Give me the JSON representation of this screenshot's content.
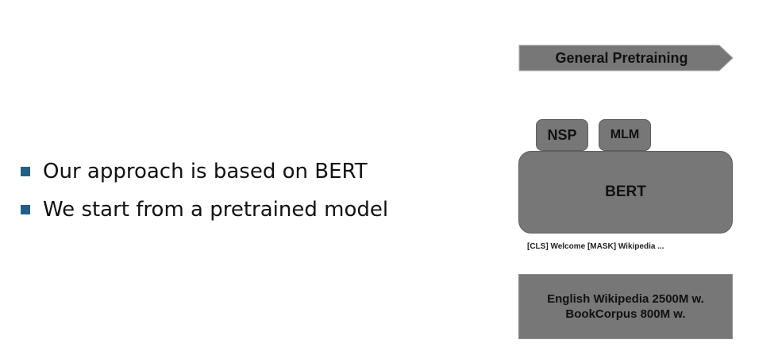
{
  "bullets": [
    "Our approach is based on BERT",
    "We start from a pretrained model"
  ],
  "diagram": {
    "banner_label": "General Pretraining",
    "heads": {
      "nsp": "NSP",
      "mlm": "MLM"
    },
    "model_label": "BERT",
    "input_tokens": "[CLS] Welcome [MASK] Wikipedia ...",
    "corpus": {
      "line1": "English Wikipedia 2500M w.",
      "line2": "BookCorpus 800M w."
    }
  },
  "colors": {
    "bullet_marker": "#1f5f8b",
    "box_fill": "#777777",
    "text": "#111111"
  }
}
